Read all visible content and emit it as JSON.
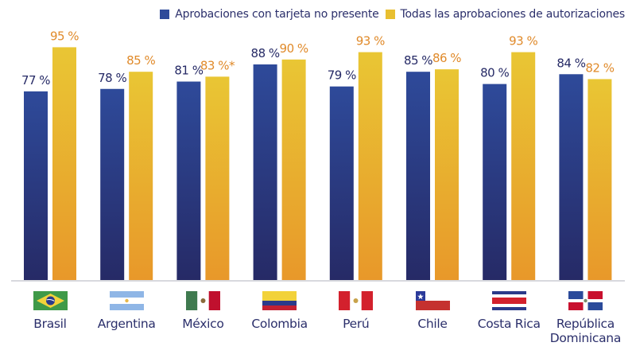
{
  "chart_data": {
    "type": "bar",
    "title": "",
    "xlabel": "",
    "ylabel": "",
    "ylim": [
      0,
      100
    ],
    "grid": false,
    "legend_position": "top-right",
    "categories": [
      "Brasil",
      "Argentina",
      "México",
      "Colombia",
      "Perú",
      "Chile",
      "Costa Rica",
      "República Dominicana"
    ],
    "category_lines": [
      [
        "Brasil"
      ],
      [
        "Argentina"
      ],
      [
        "México"
      ],
      [
        "Colombia"
      ],
      [
        "Perú"
      ],
      [
        "Chile"
      ],
      [
        "Costa Rica"
      ],
      [
        "República",
        "Dominicana"
      ]
    ],
    "series": [
      {
        "name": "Aprobaciones con tarjeta no presente",
        "values": [
          77,
          78,
          81,
          88,
          79,
          85,
          80,
          84
        ],
        "labels": [
          "77 %",
          "78 %",
          "81 %",
          "88 %",
          "79 %",
          "85 %",
          "80 %",
          "84 %"
        ],
        "color_top": "#2e4a9a",
        "color_bottom": "#262a66",
        "label_color": "#262a66"
      },
      {
        "name": "Todas las aprobaciones de autorizaciones",
        "values": [
          95,
          85,
          83,
          90,
          93,
          86,
          93,
          82
        ],
        "labels": [
          "95 %",
          "85 %",
          "83 %*",
          "90 %",
          "93 %",
          "86 %",
          "93 %",
          "82 %"
        ],
        "color_top": "#e8c434",
        "color_bottom": "#e89a2a",
        "label_color": "#e08a2a"
      }
    ],
    "flags": [
      "brazil-flag",
      "argentina-flag",
      "mexico-flag",
      "colombia-flag",
      "peru-flag",
      "chile-flag",
      "costa-rica-flag",
      "dominican-republic-flag"
    ]
  },
  "legend": {
    "items": [
      {
        "label": "Aprobaciones con tarjeta no presente",
        "color": "#2e4a9a"
      },
      {
        "label": "Todas las aprobaciones de autorizaciones",
        "color": "#e8bf30"
      }
    ]
  }
}
